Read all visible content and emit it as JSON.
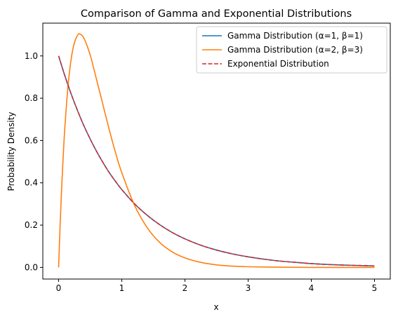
{
  "chart_data": {
    "type": "line",
    "title": "Comparison of Gamma and Exponential Distributions",
    "xlabel": "x",
    "ylabel": "Probability Density",
    "xlim": [
      -0.25,
      5.25
    ],
    "ylim": [
      -0.055,
      1.155
    ],
    "xticks": [
      0,
      1,
      2,
      3,
      4,
      5
    ],
    "xtick_labels": [
      "0",
      "1",
      "2",
      "3",
      "4",
      "5"
    ],
    "yticks": [
      0.0,
      0.2,
      0.4,
      0.6,
      0.8,
      1.0
    ],
    "ytick_labels": [
      "0.0",
      "0.2",
      "0.4",
      "0.6",
      "0.8",
      "1.0"
    ],
    "grid": false,
    "legend_position": "top-right",
    "series": [
      {
        "name": "Gamma Distribution (α=1, β=1)",
        "color": "#1f77b4",
        "style": "solid",
        "x": [
          0,
          0.1,
          0.2,
          0.3,
          0.4,
          0.5,
          0.6,
          0.7,
          0.8,
          0.9,
          1.0,
          1.2,
          1.4,
          1.6,
          1.8,
          2.0,
          2.25,
          2.5,
          2.75,
          3.0,
          3.25,
          3.5,
          3.75,
          4.0,
          4.25,
          4.5,
          4.75,
          5.0
        ],
        "y": [
          1.0,
          0.905,
          0.819,
          0.741,
          0.67,
          0.607,
          0.549,
          0.497,
          0.449,
          0.407,
          0.368,
          0.301,
          0.247,
          0.202,
          0.165,
          0.135,
          0.105,
          0.082,
          0.064,
          0.05,
          0.039,
          0.03,
          0.024,
          0.018,
          0.014,
          0.011,
          0.009,
          0.007
        ]
      },
      {
        "name": "Gamma Distribution (α=2, β=3)",
        "color": "#ff7f0e",
        "style": "solid",
        "x": [
          0,
          0.025,
          0.05,
          0.075,
          0.1,
          0.15,
          0.2,
          0.25,
          0.3,
          0.333,
          0.4,
          0.5,
          0.6,
          0.7,
          0.8,
          0.9,
          1.0,
          1.2,
          1.4,
          1.6,
          1.8,
          2.0,
          2.25,
          2.5,
          2.75,
          3.0,
          3.5,
          4.0,
          4.5,
          5.0
        ],
        "y": [
          0.0,
          0.209,
          0.387,
          0.538,
          0.667,
          0.861,
          0.988,
          1.063,
          1.098,
          1.104,
          1.084,
          1.004,
          0.889,
          0.771,
          0.653,
          0.544,
          0.448,
          0.295,
          0.189,
          0.118,
          0.073,
          0.045,
          0.024,
          0.012,
          0.006,
          0.003,
          0.001,
          0.0,
          0.0,
          0.0
        ]
      },
      {
        "name": "Exponential Distribution",
        "color": "#d62728",
        "style": "dashed",
        "x": [
          0,
          0.1,
          0.2,
          0.3,
          0.4,
          0.5,
          0.6,
          0.7,
          0.8,
          0.9,
          1.0,
          1.2,
          1.4,
          1.6,
          1.8,
          2.0,
          2.25,
          2.5,
          2.75,
          3.0,
          3.25,
          3.5,
          3.75,
          4.0,
          4.25,
          4.5,
          4.75,
          5.0
        ],
        "y": [
          1.0,
          0.905,
          0.819,
          0.741,
          0.67,
          0.607,
          0.549,
          0.497,
          0.449,
          0.407,
          0.368,
          0.301,
          0.247,
          0.202,
          0.165,
          0.135,
          0.105,
          0.082,
          0.064,
          0.05,
          0.039,
          0.03,
          0.024,
          0.018,
          0.014,
          0.011,
          0.009,
          0.007
        ]
      }
    ]
  }
}
